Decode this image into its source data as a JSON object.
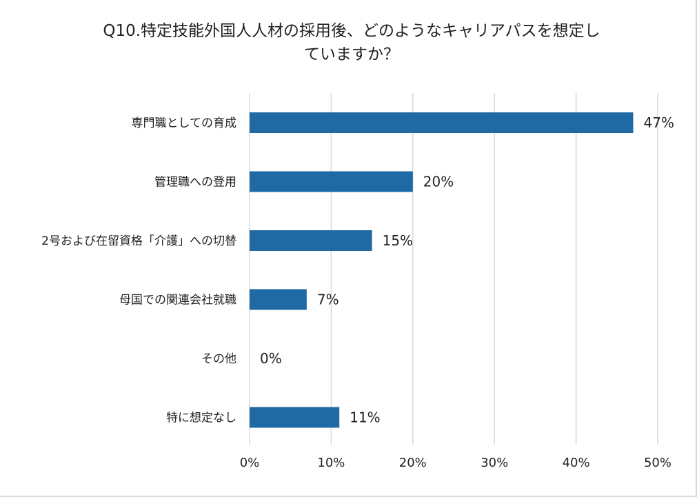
{
  "chart_data": {
    "type": "bar",
    "orientation": "horizontal",
    "title_lines": [
      "Q10.特定技能外国人人材の採用後、どのようなキャリアパスを想定し",
      "ていますか？"
    ],
    "categories": [
      "専門職としての育成",
      "管理職への登用",
      "2号および在留資格「介護」への切替",
      "母国での関連会社就職",
      "その他",
      "特に想定なし"
    ],
    "values": [
      47,
      20,
      15,
      7,
      0,
      11
    ],
    "value_labels": [
      "47%",
      "20%",
      "15%",
      "7%",
      "0%",
      "11%"
    ],
    "xlim": [
      0,
      50
    ],
    "x_ticks": [
      0,
      10,
      20,
      30,
      40,
      50
    ],
    "x_tick_labels": [
      "0%",
      "10%",
      "20%",
      "30%",
      "40%",
      "50%"
    ],
    "grid": "vertical",
    "legend": "none",
    "bar_color": "#1f6aa5",
    "grid_color": "#d9d9d9"
  }
}
